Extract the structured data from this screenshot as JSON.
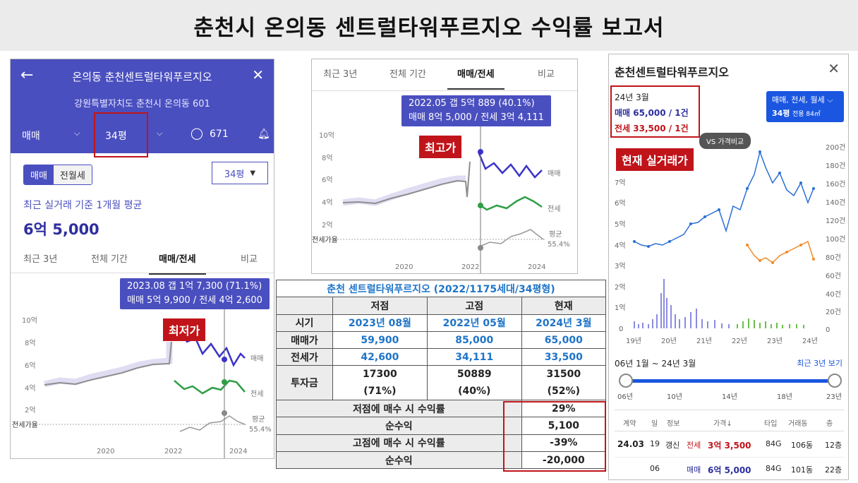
{
  "page_title": "춘천시 온의동 센트럴타워푸르지오 수익률 보고서",
  "left": {
    "title": "온의동 춘천센트럴타워푸르지오",
    "address": "강원특별자치도 춘천시 온의동 601",
    "trade_type": "매매",
    "size": "34평",
    "comments": "671",
    "seg_on": "매매",
    "seg_off": "전월세",
    "size_select": "34평",
    "recent_label": "최근 실거래 기준 1개월 평균",
    "recent_price": "6억 5,000",
    "tabs": [
      "최근 3년",
      "전체 기간",
      "매매/전세",
      "비교"
    ],
    "tooltip_line1": "2023.08  갭 1억 7,300 (71.1%)",
    "tooltip_line2": "매매 5억 9,900 / 전세 4억 2,600",
    "tag": "최저가",
    "y_ticks": [
      "10억",
      "8억",
      "6억",
      "4억",
      "2억"
    ],
    "jeonse_rate": "전세가율",
    "avg_label": "평균",
    "avg_value": "55.4%",
    "series_sale": "매매",
    "series_jeonse": "전세",
    "x_ticks": [
      "2020",
      "2022",
      "2024"
    ]
  },
  "mid": {
    "tabs": [
      "최근 3년",
      "전체 기간",
      "매매/전세",
      "비교"
    ],
    "tooltip_line1": "2022.05  갭 5억 889 (40.1%)",
    "tooltip_line2": "매매 8억 5,000 / 전세 3억 4,111",
    "tag": "최고가",
    "y_ticks": [
      "10억",
      "8억",
      "6억",
      "4억",
      "2억"
    ],
    "jeonse_rate": "전세가율",
    "avg_label": "평균",
    "avg_value": "55.4%",
    "series_sale": "매매",
    "series_jeonse": "전세",
    "x_ticks": [
      "2020",
      "2022",
      "2024"
    ]
  },
  "table": {
    "title": "춘천 센트럴타워푸르지오 (2022/1175세대/34평형)",
    "headers": [
      "저점",
      "고점",
      "현재"
    ],
    "row_period": {
      "label": "시기",
      "values": [
        "2023년 08월",
        "2022년 05월",
        "2024년 3월"
      ]
    },
    "row_sale": {
      "label": "매매가",
      "values": [
        "59,900",
        "85,000",
        "65,000"
      ]
    },
    "row_jeonse": {
      "label": "전세가",
      "values": [
        "42,600",
        "34,111",
        "33,500"
      ]
    },
    "row_invest": {
      "label": "투자금",
      "values": [
        "17300",
        "50889",
        "31500"
      ],
      "pct": [
        "(71%)",
        "(40%)",
        "(52%)"
      ]
    },
    "summary": [
      {
        "label": "저점에 매수 시 수익률",
        "value": "29%"
      },
      {
        "label": "순수익",
        "value": "5,100"
      },
      {
        "label": "고점에 매수 시 수익률",
        "value": "-39%"
      },
      {
        "label": "순수익",
        "value": "-20,000"
      }
    ]
  },
  "right": {
    "title": "춘천센트럴타워푸르지오",
    "box_date": "24년 3월",
    "box_sale": "매매 65,000 / 1건",
    "box_jeonse": "전세 33,500 / 1건",
    "filter_line1": "매매, 전세, 월세",
    "filter_size": "34평",
    "filter_area": "전용 84㎡",
    "vs_button": "VS 가격비교",
    "tag": "현재 실거래가",
    "y_left": [
      "7억",
      "6억",
      "5억",
      "4억",
      "3억",
      "2억",
      "1억",
      "0"
    ],
    "y_right": [
      "200건",
      "180건",
      "160건",
      "140건",
      "120건",
      "100건",
      "80건",
      "60건",
      "40건",
      "20건",
      "0"
    ],
    "x_ticks": [
      "19년",
      "20년",
      "21년",
      "22년",
      "23년",
      "24년"
    ],
    "range_label": "06년 1월 ~ 24년 3월",
    "recent3": "최근 3년 보기",
    "slider_ticks": [
      "06년",
      "10년",
      "14년",
      "18년",
      "23년"
    ],
    "list_headers": [
      "계약",
      "일",
      "정보",
      "가격↓",
      "타입",
      "거래동",
      "층"
    ],
    "rows": [
      {
        "date": "24.03",
        "day": "19",
        "info": "갱신",
        "kind": "전세",
        "price": "3억 3,500",
        "type": "84G",
        "dong": "106동",
        "floor": "12층"
      },
      {
        "date": "",
        "day": "06",
        "info": "",
        "kind": "매매",
        "price": "6억 5,000",
        "type": "84G",
        "dong": "101동",
        "floor": "22층"
      }
    ]
  },
  "colors": {
    "primary": "#4a4fbf",
    "red": "#c0141a",
    "jeonse": "#2e9e45",
    "blue": "#1e74c8"
  }
}
